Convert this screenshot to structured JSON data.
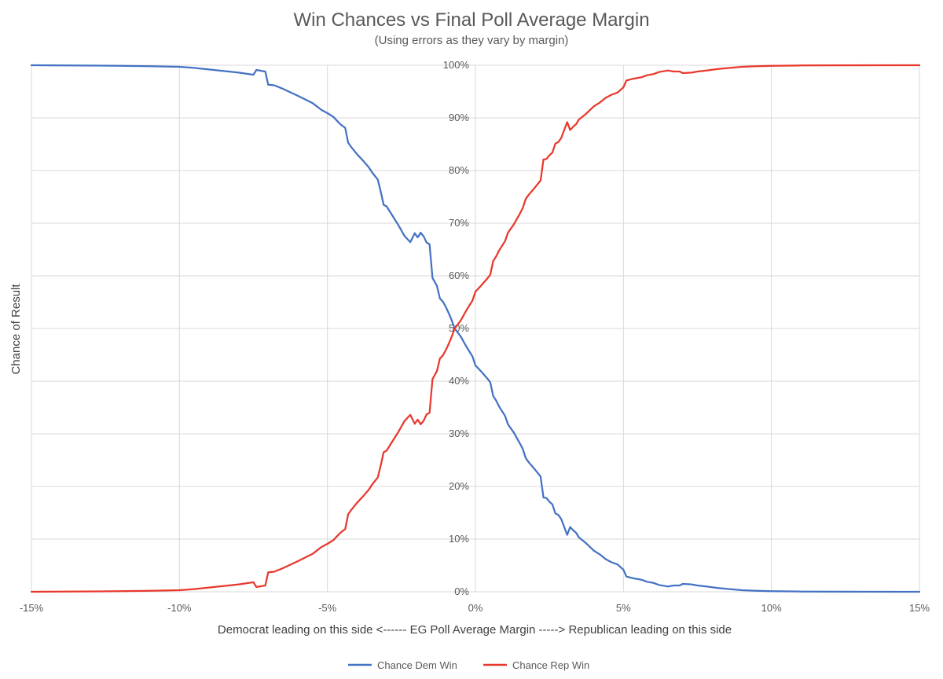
{
  "chart_data": {
    "type": "line",
    "title": "Win Chances vs Final Poll Average Margin",
    "subtitle": "(Using errors as they vary by margin)",
    "xlabel": "Democrat leading on this side <------ EG Poll Average Margin -----> Republican leading on this side",
    "ylabel": "Chance of Result",
    "xlim": [
      -15,
      15
    ],
    "ylim": [
      0,
      100
    ],
    "x_ticks": [
      -15,
      -10,
      -5,
      0,
      5,
      10,
      15
    ],
    "x_tick_labels": [
      "-15%",
      "-10%",
      "-5%",
      "0%",
      "5%",
      "10%",
      "15%"
    ],
    "y_ticks": [
      0,
      10,
      20,
      30,
      40,
      50,
      60,
      70,
      80,
      90,
      100
    ],
    "y_tick_labels": [
      "0%",
      "10%",
      "20%",
      "30%",
      "40%",
      "50%",
      "60%",
      "70%",
      "80%",
      "90%",
      "100%"
    ],
    "grid": true,
    "legend_position": "bottom",
    "series": [
      {
        "name": "Chance Dem Win",
        "color": "#4472C4",
        "x": [
          -15,
          -12,
          -11,
          -10,
          -9.5,
          -9,
          -8.5,
          -8,
          -7.5,
          -7.4,
          -7.2,
          -7.1,
          -7,
          -6.8,
          -6.5,
          -6,
          -5.5,
          -5.2,
          -5,
          -4.8,
          -4.6,
          -4.5,
          -4.4,
          -4.3,
          -4.2,
          -4,
          -3.8,
          -3.6,
          -3.5,
          -3.3,
          -3.2,
          -3.1,
          -3,
          -2.8,
          -2.6,
          -2.4,
          -2.2,
          -2.05,
          -1.95,
          -1.85,
          -1.75,
          -1.65,
          -1.55,
          -1.45,
          -1.3,
          -1.2,
          -1.1,
          -1,
          -0.9,
          -0.8,
          -0.7,
          -0.5,
          -0.3,
          -0.1,
          0,
          0.2,
          0.4,
          0.5,
          0.6,
          0.7,
          0.8,
          0.9,
          1,
          1.1,
          1.3,
          1.5,
          1.6,
          1.7,
          1.8,
          2,
          2.2,
          2.3,
          2.4,
          2.5,
          2.6,
          2.7,
          2.8,
          2.9,
          3,
          3.1,
          3.2,
          3.3,
          3.4,
          3.5,
          3.7,
          3.8,
          4,
          4.2,
          4.4,
          4.6,
          4.8,
          5,
          5.1,
          5.3,
          5.6,
          5.8,
          6,
          6.2,
          6.5,
          6.7,
          6.9,
          7,
          7.3,
          7.5,
          7.8,
          8.2,
          8.6,
          9,
          9.5,
          10,
          11,
          12,
          15
        ],
        "y": [
          100,
          99.9,
          99.8,
          99.7,
          99.5,
          99.2,
          98.9,
          98.6,
          98.2,
          99.1,
          98.9,
          98.8,
          96.3,
          96.2,
          95.5,
          94.2,
          92.8,
          91.5,
          90.9,
          90.2,
          89,
          88.5,
          88.1,
          85.3,
          84.5,
          83.1,
          81.9,
          80.6,
          79.7,
          78.3,
          76,
          73.5,
          73.2,
          71.4,
          69.6,
          67.6,
          66.4,
          68.1,
          67.3,
          68.2,
          67.5,
          66.3,
          66,
          59.6,
          58.1,
          55.7,
          55.1,
          54.1,
          52.9,
          51.5,
          50,
          48.5,
          46.5,
          44.7,
          43,
          41.8,
          40.5,
          39.8,
          37.2,
          36.3,
          35.2,
          34.3,
          33.4,
          31.8,
          30.2,
          28.2,
          27.1,
          25.4,
          24.6,
          23.3,
          21.9,
          17.9,
          17.8,
          17.1,
          16.6,
          14.9,
          14.6,
          13.8,
          12.3,
          10.8,
          12.3,
          11.7,
          11.2,
          10.3,
          9.4,
          8.9,
          7.8,
          7.1,
          6.2,
          5.6,
          5.2,
          4.2,
          2.9,
          2.6,
          2.3,
          1.9,
          1.7,
          1.3,
          1,
          1.2,
          1.2,
          1.5,
          1.4,
          1.2,
          1,
          0.7,
          0.5,
          0.3,
          0.2,
          0.1,
          0.05,
          0.02,
          0
        ]
      },
      {
        "name": "Chance Rep Win",
        "color": "#E8382D",
        "x": [
          -15,
          -12,
          -11,
          -10,
          -9.5,
          -9,
          -8.5,
          -8,
          -7.5,
          -7.4,
          -7.2,
          -7.1,
          -7,
          -6.8,
          -6.5,
          -6,
          -5.5,
          -5.2,
          -5,
          -4.8,
          -4.6,
          -4.5,
          -4.4,
          -4.3,
          -4.2,
          -4,
          -3.8,
          -3.6,
          -3.5,
          -3.3,
          -3.2,
          -3.1,
          -3,
          -2.8,
          -2.6,
          -2.4,
          -2.2,
          -2.05,
          -1.95,
          -1.85,
          -1.75,
          -1.65,
          -1.55,
          -1.45,
          -1.3,
          -1.2,
          -1.1,
          -1,
          -0.9,
          -0.8,
          -0.7,
          -0.5,
          -0.3,
          -0.1,
          0,
          0.2,
          0.4,
          0.5,
          0.6,
          0.7,
          0.8,
          0.9,
          1,
          1.1,
          1.3,
          1.5,
          1.6,
          1.7,
          1.8,
          2,
          2.2,
          2.3,
          2.4,
          2.5,
          2.6,
          2.7,
          2.8,
          2.9,
          3,
          3.1,
          3.2,
          3.3,
          3.4,
          3.5,
          3.7,
          3.8,
          4,
          4.2,
          4.4,
          4.6,
          4.8,
          5,
          5.1,
          5.3,
          5.6,
          5.8,
          6,
          6.2,
          6.5,
          6.7,
          6.9,
          7,
          7.3,
          7.5,
          7.8,
          8.2,
          8.6,
          9,
          9.5,
          10,
          11,
          12,
          15
        ],
        "y": [
          0,
          0.1,
          0.2,
          0.3,
          0.5,
          0.8,
          1.1,
          1.4,
          1.8,
          0.9,
          1.1,
          1.2,
          3.7,
          3.8,
          4.5,
          5.8,
          7.2,
          8.5,
          9.1,
          9.8,
          11,
          11.5,
          11.9,
          14.7,
          15.5,
          16.9,
          18.1,
          19.4,
          20.3,
          21.7,
          24,
          26.5,
          26.8,
          28.6,
          30.4,
          32.4,
          33.6,
          31.9,
          32.7,
          31.8,
          32.5,
          33.7,
          34,
          40.4,
          41.9,
          44.3,
          44.9,
          45.9,
          47.1,
          48.5,
          50,
          51.5,
          53.5,
          55.3,
          57,
          58.2,
          59.5,
          60.2,
          62.8,
          63.7,
          64.8,
          65.7,
          66.6,
          68.2,
          69.8,
          71.8,
          72.9,
          74.6,
          75.4,
          76.7,
          78.1,
          82.1,
          82.2,
          82.9,
          83.4,
          85.1,
          85.4,
          86.2,
          87.7,
          89.2,
          87.7,
          88.3,
          88.8,
          89.7,
          90.6,
          91.1,
          92.2,
          92.9,
          93.8,
          94.4,
          94.8,
          95.8,
          97.1,
          97.4,
          97.7,
          98.1,
          98.3,
          98.7,
          99,
          98.8,
          98.8,
          98.5,
          98.6,
          98.8,
          99,
          99.3,
          99.5,
          99.7,
          99.8,
          99.9,
          99.95,
          99.98,
          100
        ]
      }
    ]
  }
}
